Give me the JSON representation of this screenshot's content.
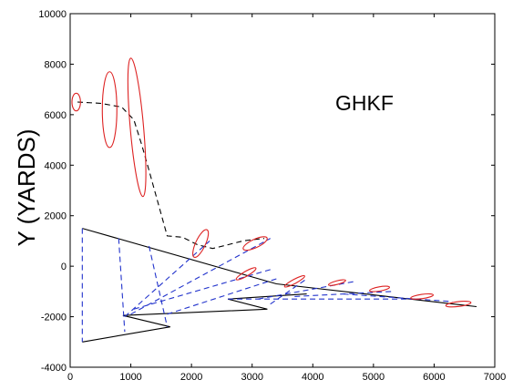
{
  "chart_data": {
    "type": "line",
    "title": "",
    "xlabel": "",
    "ylabel": "Y (YARDS)",
    "xlim": [
      0,
      7000
    ],
    "ylim": [
      -4000,
      10000
    ],
    "x_ticks": [
      0,
      1000,
      2000,
      3000,
      4000,
      5000,
      6000,
      7000
    ],
    "y_ticks": [
      -4000,
      -2000,
      0,
      2000,
      4000,
      6000,
      8000,
      10000
    ],
    "grid": false,
    "annotation": "GHKF",
    "colors": {
      "estimate_track": "#000000",
      "sensor_geometry": "#000000",
      "bearing_lines": "#2233cc",
      "covariance_ellipses": "#dd2222"
    },
    "series": [
      {
        "style": "dashed",
        "color": "#000000",
        "points": [
          [
            120,
            6500
          ],
          [
            500,
            6450
          ],
          [
            850,
            6300
          ],
          [
            1050,
            5800
          ],
          [
            1180,
            4800
          ],
          [
            1300,
            3800
          ],
          [
            1450,
            2500
          ],
          [
            1600,
            1200
          ],
          [
            1850,
            1150
          ],
          [
            2100,
            850
          ],
          [
            2350,
            700
          ],
          [
            2600,
            850
          ],
          [
            2850,
            1000
          ],
          [
            3000,
            1050
          ],
          [
            3200,
            1100
          ]
        ]
      },
      {
        "style": "solid",
        "color": "#000000",
        "points": [
          [
            200,
            1500
          ],
          [
            3400,
            -700
          ],
          [
            6700,
            -1600
          ]
        ]
      },
      {
        "style": "solid",
        "color": "#000000",
        "points": [
          [
            200,
            -3000
          ],
          [
            1650,
            -2400
          ],
          [
            870,
            -1950
          ],
          [
            3250,
            -1700
          ],
          [
            2600,
            -1300
          ],
          [
            3900,
            -1100
          ]
        ]
      },
      {
        "style": "dashed",
        "color": "#2233cc",
        "segments": [
          [
            [
              200,
              1500
            ],
            [
              200,
              -3000
            ]
          ],
          [
            [
              800,
              1100
            ],
            [
              900,
              -2600
            ]
          ],
          [
            [
              1300,
              800
            ],
            [
              1600,
              -2400
            ]
          ],
          [
            [
              900,
              -2000
            ],
            [
              2300,
              1000
            ]
          ],
          [
            [
              1000,
              -1900
            ],
            [
              3300,
              1100
            ]
          ],
          [
            [
              1050,
              -1700
            ],
            [
              3350,
              -100
            ]
          ],
          [
            [
              1600,
              -1900
            ],
            [
              3400,
              -500
            ]
          ],
          [
            [
              3300,
              -1500
            ],
            [
              3900,
              -500
            ]
          ],
          [
            [
              3100,
              -1300
            ],
            [
              4700,
              -600
            ]
          ],
          [
            [
              3700,
              -1200
            ],
            [
              5300,
              -1000
            ]
          ],
          [
            [
              2600,
              -1300
            ],
            [
              5700,
              -1300
            ]
          ],
          [
            [
              4500,
              -1100
            ],
            [
              6300,
              -1400
            ]
          ]
        ]
      }
    ],
    "ellipses": [
      {
        "cx": 100,
        "cy": 6500,
        "rx": 70,
        "ry": 350,
        "angle": 0
      },
      {
        "cx": 650,
        "cy": 6200,
        "rx": 120,
        "ry": 1500,
        "angle": 0
      },
      {
        "cx": 1100,
        "cy": 5500,
        "rx": 110,
        "ry": 2750,
        "angle": -5
      },
      {
        "cx": 2150,
        "cy": 900,
        "rx": 80,
        "ry": 600,
        "angle": 25
      },
      {
        "cx": 3050,
        "cy": 900,
        "rx": 70,
        "ry": 520,
        "angle": 65
      },
      {
        "cx": 2900,
        "cy": -300,
        "rx": 40,
        "ry": 450,
        "angle": 60
      },
      {
        "cx": 3700,
        "cy": -600,
        "rx": 35,
        "ry": 450,
        "angle": 62
      },
      {
        "cx": 4400,
        "cy": -650,
        "rx": 30,
        "ry": 350,
        "angle": 75
      },
      {
        "cx": 5100,
        "cy": -900,
        "rx": 35,
        "ry": 400,
        "angle": 80
      },
      {
        "cx": 5800,
        "cy": -1200,
        "rx": 35,
        "ry": 450,
        "angle": 82
      },
      {
        "cx": 6400,
        "cy": -1500,
        "rx": 40,
        "ry": 500,
        "angle": 83
      }
    ]
  }
}
